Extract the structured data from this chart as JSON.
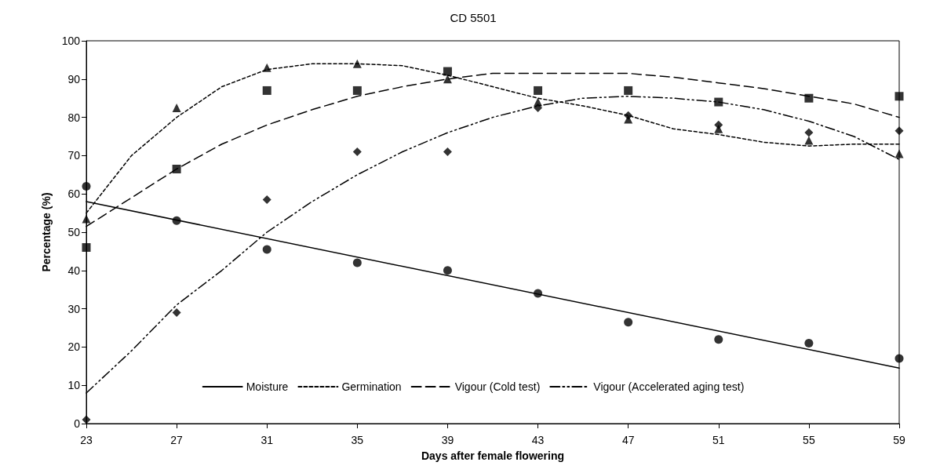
{
  "chart_data": {
    "type": "line",
    "title": "CD 5501",
    "xlabel": "Days after female flowering",
    "ylabel": "Percentage (%)",
    "xlim": [
      23,
      59
    ],
    "xticks": [
      23,
      27,
      31,
      35,
      39,
      43,
      47,
      51,
      55,
      59
    ],
    "ylim": [
      0,
      100
    ],
    "yticks": [
      0,
      10,
      20,
      30,
      40,
      50,
      60,
      70,
      80,
      90,
      100
    ],
    "grid": false,
    "legend": "bottom",
    "series": [
      {
        "name": "Moisture",
        "color": "#000000",
        "line_style": "solid",
        "marker": "none",
        "x": [
          23,
          59
        ],
        "values": [
          58,
          14.5
        ]
      },
      {
        "name": "Germination",
        "color": "#000000",
        "line_style": "dotted",
        "marker": "none",
        "x": [
          23,
          25,
          27,
          29,
          31,
          33,
          35,
          37,
          39,
          41,
          43,
          45,
          47,
          49,
          51,
          53,
          55,
          57,
          59
        ],
        "values": [
          55,
          70,
          80,
          88,
          92.5,
          94,
          94,
          93.5,
          91,
          88,
          85,
          83,
          80.5,
          77,
          75.5,
          73.5,
          72.5,
          73,
          73
        ]
      },
      {
        "name": "Vigour (Cold test)",
        "color": "#000000",
        "line_style": "dashed",
        "marker": "none",
        "x": [
          23,
          25,
          27,
          29,
          31,
          33,
          35,
          37,
          39,
          41,
          43,
          45,
          47,
          49,
          51,
          53,
          55,
          57,
          59
        ],
        "values": [
          51.5,
          59,
          66.5,
          73,
          78,
          82,
          85.5,
          88,
          90,
          91.5,
          91.5,
          91.5,
          91.5,
          90.5,
          89,
          87.5,
          85.5,
          83.5,
          80
        ]
      },
      {
        "name": "Vigour (Accelerated aging test)",
        "color": "#000000",
        "line_style": "dashdotdot",
        "marker": "none",
        "x": [
          23,
          25,
          27,
          29,
          31,
          33,
          35,
          37,
          39,
          41,
          43,
          45,
          47,
          49,
          51,
          53,
          55,
          57,
          59
        ],
        "values": [
          8,
          19,
          31,
          40,
          50,
          58,
          65,
          71,
          76,
          80,
          83,
          85,
          85.5,
          85,
          84,
          82,
          79,
          75,
          69
        ]
      },
      {
        "type": "scatter",
        "color": "#000000",
        "marker": "circle",
        "x": [
          23,
          27,
          31,
          35,
          39,
          43,
          47,
          51,
          55,
          59
        ],
        "values": [
          62,
          53,
          45.5,
          42,
          40,
          34,
          26.5,
          22,
          21,
          17
        ]
      },
      {
        "type": "scatter",
        "color": "#000000",
        "marker": "triangle",
        "x": [
          23,
          27,
          31,
          35,
          39,
          43,
          47,
          51,
          55,
          59
        ],
        "values": [
          53.5,
          82.5,
          93,
          94,
          90,
          84,
          79.5,
          77,
          74,
          70.5
        ]
      },
      {
        "type": "scatter",
        "color": "#000000",
        "marker": "square",
        "x": [
          23,
          27,
          31,
          35,
          39,
          43,
          47,
          51,
          55,
          59
        ],
        "values": [
          46,
          66.5,
          87,
          87,
          92,
          87,
          87,
          84,
          85,
          85.5
        ]
      },
      {
        "type": "scatter",
        "color": "#000000",
        "marker": "diamond",
        "x": [
          23,
          27,
          31,
          35,
          39,
          43,
          47,
          51,
          55,
          59
        ],
        "values": [
          1,
          29,
          58.5,
          71,
          71,
          82.5,
          80.5,
          78,
          76,
          76.5
        ]
      }
    ]
  }
}
